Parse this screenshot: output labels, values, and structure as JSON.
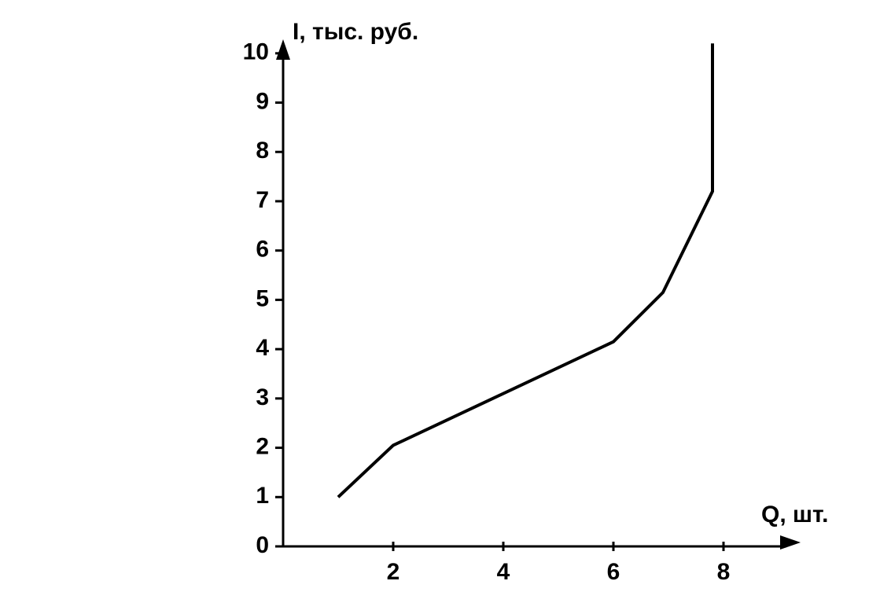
{
  "chart_data": {
    "type": "line",
    "xlabel": "Q, шт.",
    "ylabel": "I, тыс. руб.",
    "x": [
      1,
      2,
      6,
      6.9,
      7.8,
      7.8
    ],
    "series": [
      {
        "color": "#000000",
        "values": [
          1,
          2.05,
          4.15,
          5.15,
          7.2,
          10.2
        ]
      }
    ],
    "xlim": [
      0,
      9.3
    ],
    "ylim": [
      0,
      10.3
    ],
    "xticks": [
      2,
      4,
      6,
      8
    ],
    "yticks": [
      0,
      1,
      2,
      3,
      4,
      5,
      6,
      7,
      8,
      9,
      10
    ],
    "grid": false
  }
}
